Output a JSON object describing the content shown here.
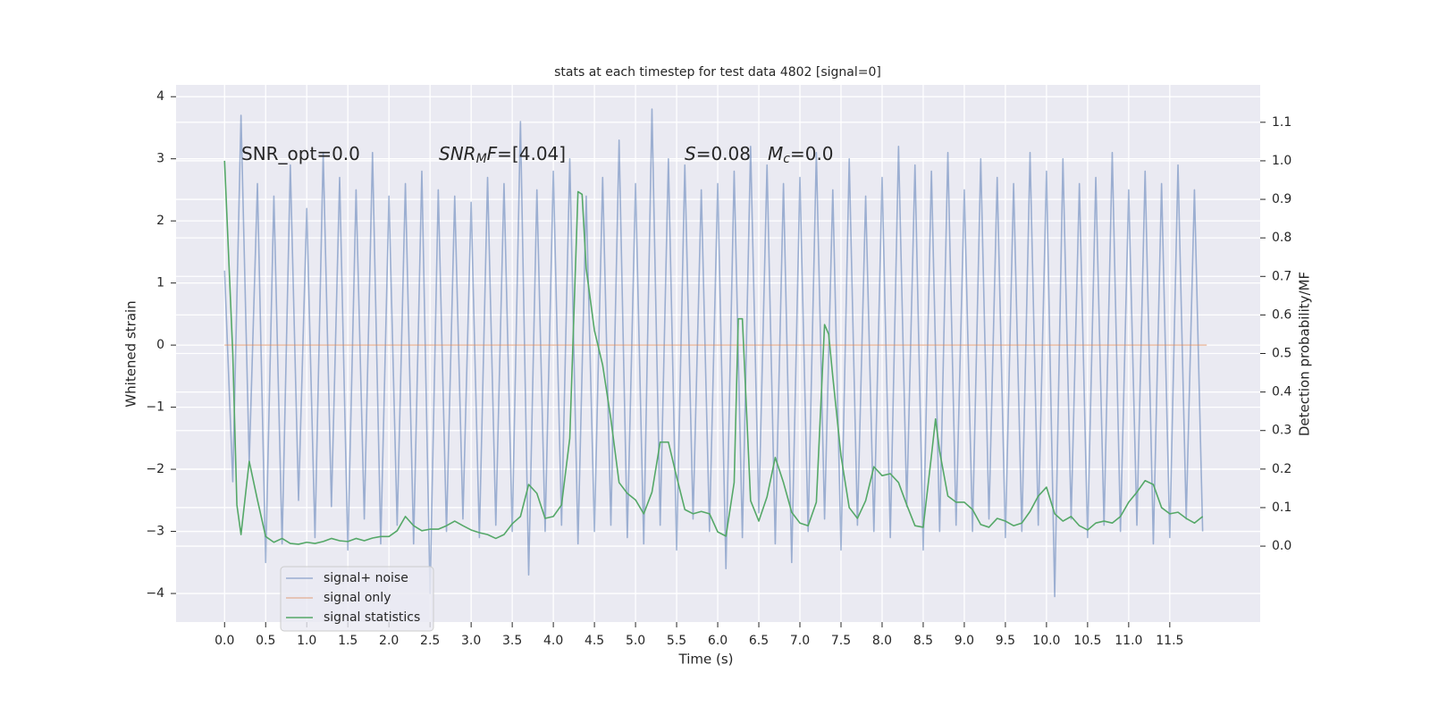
{
  "chart_data": {
    "type": "line",
    "title": "stats at each timestep for test data 4802 [signal=0]",
    "x_label": "Time (s)",
    "y_label": "Whitened strain",
    "y2_label": "Detection probability/MF",
    "xlim": [
      -0.59,
      12.6
    ],
    "ylim": [
      -4.46,
      4.19
    ],
    "y2lim": [
      -0.197,
      1.197
    ],
    "xticks": [
      {
        "value": 0,
        "label": "0.0"
      },
      {
        "value": 0.5,
        "label": "0.5"
      },
      {
        "value": 1,
        "label": "1.0"
      },
      {
        "value": 1.5,
        "label": "1.5"
      },
      {
        "value": 2,
        "label": "2.0"
      },
      {
        "value": 2.5,
        "label": "2.5"
      },
      {
        "value": 3,
        "label": "3.0"
      },
      {
        "value": 3.5,
        "label": "3.5"
      },
      {
        "value": 4,
        "label": "4.0"
      },
      {
        "value": 4.5,
        "label": "4.5"
      },
      {
        "value": 5,
        "label": "5.0"
      },
      {
        "value": 5.5,
        "label": "5.5"
      },
      {
        "value": 6,
        "label": "6.0"
      },
      {
        "value": 6.5,
        "label": "6.5"
      },
      {
        "value": 7,
        "label": "7.0"
      },
      {
        "value": 7.5,
        "label": "7.5"
      },
      {
        "value": 8,
        "label": "8.0"
      },
      {
        "value": 8.5,
        "label": "8.5"
      },
      {
        "value": 9,
        "label": "9.0"
      },
      {
        "value": 9.5,
        "label": "9.5"
      },
      {
        "value": 10,
        "label": "10.0"
      },
      {
        "value": 10.5,
        "label": "10.5"
      },
      {
        "value": 11,
        "label": "11.0"
      },
      {
        "value": 11.5,
        "label": "11.5"
      }
    ],
    "yticks": [
      {
        "value": -4,
        "label": "−4"
      },
      {
        "value": -3,
        "label": "−3"
      },
      {
        "value": -2,
        "label": "−2"
      },
      {
        "value": -1,
        "label": "−1"
      },
      0,
      1,
      2,
      3,
      4
    ],
    "y2ticks": [
      {
        "value": 0,
        "label": "0.0"
      },
      0.1,
      0.2,
      0.3,
      0.4,
      0.5,
      0.6,
      0.7,
      0.8,
      0.9,
      {
        "value": 1,
        "label": "1.0"
      },
      1.1
    ],
    "grid": true,
    "legend_loc": "lower left",
    "annotations": [
      {
        "parts": [
          {
            "text": "SNR_opt=0.0",
            "style": "normal"
          }
        ]
      },
      {
        "parts": [
          {
            "text": "SNR",
            "style": "italic"
          },
          {
            "text": "M",
            "style": "sub"
          },
          {
            "text": "F",
            "style": "italic"
          },
          {
            "text": "=[4.04]",
            "style": "normal"
          }
        ]
      },
      {
        "parts": [
          {
            "text": "S",
            "style": "italic"
          },
          {
            "text": "=0.08",
            "style": "normal"
          }
        ]
      },
      {
        "parts": [
          {
            "text": "M",
            "style": "italic"
          },
          {
            "text": "c",
            "style": "sub"
          },
          {
            "text": "=0.0",
            "style": "normal"
          }
        ]
      }
    ],
    "series": [
      {
        "name": "signal+ noise",
        "color": "#4c72b0",
        "opacity": 0.5,
        "axis": "y",
        "x": [
          0,
          0.1,
          0.2,
          0.3,
          0.4,
          0.5,
          0.6,
          0.7,
          0.8,
          0.9,
          1,
          1.1,
          1.2,
          1.3,
          1.4,
          1.5,
          1.6,
          1.7,
          1.8,
          1.9,
          2,
          2.1,
          2.2,
          2.3,
          2.4,
          2.5,
          2.6,
          2.7,
          2.8,
          2.9,
          3,
          3.1,
          3.2,
          3.3,
          3.4,
          3.5,
          3.6,
          3.7,
          3.8,
          3.9,
          4,
          4.1,
          4.2,
          4.3,
          4.4,
          4.5,
          4.6,
          4.7,
          4.8,
          4.9,
          5,
          5.1,
          5.2,
          5.3,
          5.4,
          5.5,
          5.6,
          5.7,
          5.8,
          5.9,
          6,
          6.1,
          6.2,
          6.3,
          6.4,
          6.5,
          6.6,
          6.7,
          6.8,
          6.9,
          7,
          7.1,
          7.2,
          7.3,
          7.4,
          7.5,
          7.6,
          7.7,
          7.8,
          7.9,
          8,
          8.1,
          8.2,
          8.3,
          8.4,
          8.5,
          8.6,
          8.7,
          8.8,
          8.9,
          9,
          9.1,
          9.2,
          9.3,
          9.4,
          9.5,
          9.6,
          9.7,
          9.8,
          9.9,
          10,
          10.1,
          10.2,
          10.3,
          10.4,
          10.5,
          10.6,
          10.7,
          10.8,
          10.9,
          11,
          11.1,
          11.2,
          11.3,
          11.4,
          11.5,
          11.6,
          11.7,
          11.8,
          11.9
        ],
        "values": [
          1.2,
          -2.2,
          3.7,
          -1.9,
          2.6,
          -3.5,
          2.4,
          -3.2,
          2.9,
          -2.5,
          2.2,
          -3.1,
          3.1,
          -2.6,
          2.7,
          -3.3,
          2.5,
          -2.8,
          3.1,
          -3.2,
          2.4,
          -2.9,
          2.6,
          -3.2,
          2.8,
          -4.0,
          2.5,
          -3.0,
          2.4,
          -2.8,
          2.3,
          -3.1,
          2.7,
          -2.9,
          2.6,
          -3.0,
          3.6,
          -3.7,
          2.5,
          -3.0,
          2.8,
          -2.9,
          3.0,
          -3.2,
          2.4,
          -3.0,
          2.7,
          -2.9,
          3.3,
          -3.1,
          2.6,
          -3.2,
          3.8,
          -2.9,
          3.0,
          -3.3,
          2.9,
          -2.8,
          2.5,
          -3.0,
          2.6,
          -3.6,
          2.8,
          -3.1,
          3.2,
          -2.7,
          2.9,
          -3.2,
          2.6,
          -3.5,
          2.7,
          -3.0,
          3.1,
          -2.8,
          2.5,
          -3.3,
          3.0,
          -2.9,
          2.4,
          -3.0,
          2.7,
          -3.1,
          3.2,
          -2.6,
          2.9,
          -3.3,
          2.8,
          -3.0,
          3.1,
          -2.9,
          2.5,
          -3.0,
          3.0,
          -2.8,
          2.7,
          -3.1,
          2.6,
          -3.0,
          3.1,
          -2.9,
          2.8,
          -4.05,
          3.0,
          -2.8,
          2.6,
          -3.1,
          2.7,
          -2.9,
          3.1,
          -3.0,
          2.5,
          -2.9,
          2.8,
          -3.2,
          2.6,
          -3.1,
          2.9,
          -2.8,
          2.5,
          -3.0
        ]
      },
      {
        "name": "signal only",
        "color": "#dd8452",
        "opacity": 0.5,
        "axis": "y",
        "x": [
          0,
          11.95
        ],
        "values": [
          0,
          0
        ]
      },
      {
        "name": "signal statistics",
        "color": "#55a868",
        "opacity": 1,
        "axis": "y2",
        "x": [
          0,
          0.1,
          0.15,
          0.2,
          0.3,
          0.4,
          0.5,
          0.6,
          0.7,
          0.8,
          0.9,
          1,
          1.1,
          1.2,
          1.3,
          1.4,
          1.5,
          1.6,
          1.7,
          1.8,
          1.9,
          2,
          2.1,
          2.2,
          2.3,
          2.4,
          2.5,
          2.6,
          2.7,
          2.8,
          2.9,
          3,
          3.1,
          3.2,
          3.3,
          3.4,
          3.5,
          3.6,
          3.7,
          3.8,
          3.9,
          4,
          4.1,
          4.2,
          4.3,
          4.35,
          4.4,
          4.5,
          4.6,
          4.7,
          4.8,
          4.9,
          5,
          5.1,
          5.2,
          5.3,
          5.4,
          5.5,
          5.6,
          5.7,
          5.8,
          5.9,
          6,
          6.1,
          6.2,
          6.25,
          6.3,
          6.4,
          6.5,
          6.6,
          6.7,
          6.8,
          6.9,
          7,
          7.1,
          7.2,
          7.3,
          7.35,
          7.4,
          7.5,
          7.6,
          7.7,
          7.8,
          7.9,
          8,
          8.1,
          8.2,
          8.3,
          8.4,
          8.5,
          8.6,
          8.65,
          8.7,
          8.8,
          8.9,
          9,
          9.1,
          9.2,
          9.3,
          9.4,
          9.5,
          9.6,
          9.7,
          9.8,
          9.9,
          10,
          10.1,
          10.2,
          10.3,
          10.4,
          10.5,
          10.6,
          10.7,
          10.8,
          10.9,
          11,
          11.1,
          11.2,
          11.3,
          11.4,
          11.5,
          11.6,
          11.7,
          11.8,
          11.9
        ],
        "values": [
          1.0,
          0.5,
          0.107,
          0.03,
          0.22,
          0.12,
          0.025,
          0.01,
          0.02,
          0.007,
          0.005,
          0.01,
          0.007,
          0.012,
          0.02,
          0.014,
          0.012,
          0.02,
          0.014,
          0.021,
          0.025,
          0.025,
          0.04,
          0.077,
          0.053,
          0.04,
          0.044,
          0.044,
          0.053,
          0.065,
          0.053,
          0.042,
          0.035,
          0.03,
          0.02,
          0.03,
          0.058,
          0.077,
          0.16,
          0.137,
          0.072,
          0.077,
          0.107,
          0.28,
          0.92,
          0.913,
          0.72,
          0.56,
          0.47,
          0.33,
          0.165,
          0.137,
          0.12,
          0.084,
          0.14,
          0.27,
          0.27,
          0.18,
          0.095,
          0.084,
          0.09,
          0.084,
          0.037,
          0.026,
          0.165,
          0.59,
          0.59,
          0.118,
          0.065,
          0.128,
          0.23,
          0.165,
          0.088,
          0.06,
          0.053,
          0.114,
          0.575,
          0.55,
          0.44,
          0.234,
          0.1,
          0.072,
          0.118,
          0.206,
          0.183,
          0.188,
          0.165,
          0.107,
          0.053,
          0.049,
          0.234,
          0.33,
          0.246,
          0.13,
          0.114,
          0.114,
          0.095,
          0.056,
          0.049,
          0.072,
          0.065,
          0.053,
          0.06,
          0.09,
          0.13,
          0.153,
          0.084,
          0.065,
          0.077,
          0.053,
          0.042,
          0.06,
          0.065,
          0.06,
          0.077,
          0.114,
          0.14,
          0.17,
          0.16,
          0.1,
          0.084,
          0.088,
          0.072,
          0.06,
          0.077
        ]
      }
    ]
  }
}
